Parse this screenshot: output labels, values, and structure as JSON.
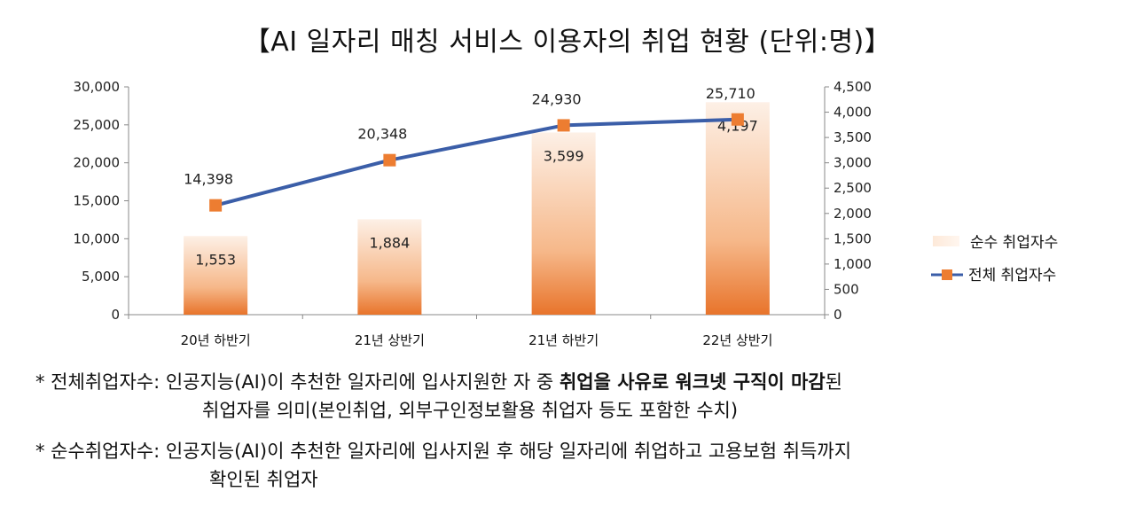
{
  "chart_data": {
    "type": "bar",
    "title": "【AI 일자리 매칭 서비스 이용자의 취업 현황 (단위:명)】",
    "categories": [
      "20년 하반기",
      "21년 상반기",
      "21년 하반기",
      "22년 상반기"
    ],
    "series": [
      {
        "name": "순수 취업자수",
        "type": "bar",
        "axis": "right",
        "values": [
          1553,
          1884,
          3599,
          4197
        ],
        "labels": [
          "1,553",
          "1,884",
          "3,599",
          "4,197"
        ]
      },
      {
        "name": "전체 취업자수",
        "type": "line",
        "axis": "left",
        "values": [
          14398,
          20348,
          24930,
          25710
        ],
        "labels": [
          "14,398",
          "20,348",
          "24,930",
          "25,710"
        ]
      }
    ],
    "left_axis": {
      "ylim": [
        0,
        30000
      ],
      "ticks": [
        "0",
        "5,000",
        "10,000",
        "15,000",
        "20,000",
        "25,000",
        "30,000"
      ]
    },
    "right_axis": {
      "ylim": [
        0,
        4500
      ],
      "ticks": [
        "0",
        "500",
        "1,000",
        "1,500",
        "2,000",
        "2,500",
        "3,000",
        "3,500",
        "4,000",
        "4,500"
      ]
    },
    "legend_position": "right",
    "grid": false,
    "colors": {
      "bar_dark": "#e8742b",
      "bar_light": "#fde9d9",
      "line": "#3b5ea8",
      "marker": "#ed7d31"
    }
  },
  "notes": [
    {
      "prefix": "* 전체취업자수:",
      "text_before": " 인공지능(AI)이 추천한 일자리에 입사지원한 자 중 ",
      "bold": "취업을 사유로 워크넷 구직이 마감",
      "text_after": "된",
      "line2": "취업자를 의미(본인취업, 외부구인정보활용 취업자 등도 포함한 수치)"
    },
    {
      "prefix": "* 순수취업자수:",
      "text_before": " 인공지능(AI)이 추천한 일자리에 입사지원 후 해당 일자리에 취업하고 고용보험 취득까지",
      "bold": "",
      "text_after": "",
      "line2": "확인된 취업자"
    }
  ]
}
